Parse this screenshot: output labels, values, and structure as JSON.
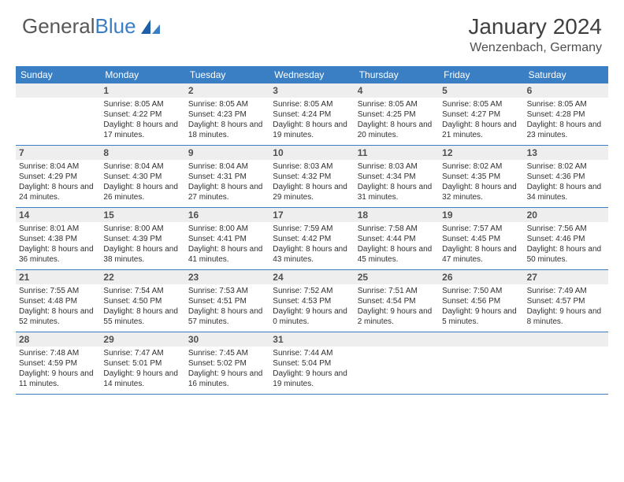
{
  "logo": {
    "word1": "General",
    "word2": "Blue"
  },
  "title": "January 2024",
  "location": "Wenzenbach, Germany",
  "colors": {
    "header_bg": "#3a7fc4",
    "header_text": "#ffffff",
    "numrow_bg": "#eeeeee",
    "row_border": "#3a7fc4",
    "body_text": "#303030",
    "logo_gray": "#585858",
    "logo_blue": "#3a7fc4"
  },
  "weekdays": [
    "Sunday",
    "Monday",
    "Tuesday",
    "Wednesday",
    "Thursday",
    "Friday",
    "Saturday"
  ],
  "weeks": [
    [
      {
        "n": "",
        "sr": "",
        "ss": "",
        "dl": ""
      },
      {
        "n": "1",
        "sr": "Sunrise: 8:05 AM",
        "ss": "Sunset: 4:22 PM",
        "dl": "Daylight: 8 hours and 17 minutes."
      },
      {
        "n": "2",
        "sr": "Sunrise: 8:05 AM",
        "ss": "Sunset: 4:23 PM",
        "dl": "Daylight: 8 hours and 18 minutes."
      },
      {
        "n": "3",
        "sr": "Sunrise: 8:05 AM",
        "ss": "Sunset: 4:24 PM",
        "dl": "Daylight: 8 hours and 19 minutes."
      },
      {
        "n": "4",
        "sr": "Sunrise: 8:05 AM",
        "ss": "Sunset: 4:25 PM",
        "dl": "Daylight: 8 hours and 20 minutes."
      },
      {
        "n": "5",
        "sr": "Sunrise: 8:05 AM",
        "ss": "Sunset: 4:27 PM",
        "dl": "Daylight: 8 hours and 21 minutes."
      },
      {
        "n": "6",
        "sr": "Sunrise: 8:05 AM",
        "ss": "Sunset: 4:28 PM",
        "dl": "Daylight: 8 hours and 23 minutes."
      }
    ],
    [
      {
        "n": "7",
        "sr": "Sunrise: 8:04 AM",
        "ss": "Sunset: 4:29 PM",
        "dl": "Daylight: 8 hours and 24 minutes."
      },
      {
        "n": "8",
        "sr": "Sunrise: 8:04 AM",
        "ss": "Sunset: 4:30 PM",
        "dl": "Daylight: 8 hours and 26 minutes."
      },
      {
        "n": "9",
        "sr": "Sunrise: 8:04 AM",
        "ss": "Sunset: 4:31 PM",
        "dl": "Daylight: 8 hours and 27 minutes."
      },
      {
        "n": "10",
        "sr": "Sunrise: 8:03 AM",
        "ss": "Sunset: 4:32 PM",
        "dl": "Daylight: 8 hours and 29 minutes."
      },
      {
        "n": "11",
        "sr": "Sunrise: 8:03 AM",
        "ss": "Sunset: 4:34 PM",
        "dl": "Daylight: 8 hours and 31 minutes."
      },
      {
        "n": "12",
        "sr": "Sunrise: 8:02 AM",
        "ss": "Sunset: 4:35 PM",
        "dl": "Daylight: 8 hours and 32 minutes."
      },
      {
        "n": "13",
        "sr": "Sunrise: 8:02 AM",
        "ss": "Sunset: 4:36 PM",
        "dl": "Daylight: 8 hours and 34 minutes."
      }
    ],
    [
      {
        "n": "14",
        "sr": "Sunrise: 8:01 AM",
        "ss": "Sunset: 4:38 PM",
        "dl": "Daylight: 8 hours and 36 minutes."
      },
      {
        "n": "15",
        "sr": "Sunrise: 8:00 AM",
        "ss": "Sunset: 4:39 PM",
        "dl": "Daylight: 8 hours and 38 minutes."
      },
      {
        "n": "16",
        "sr": "Sunrise: 8:00 AM",
        "ss": "Sunset: 4:41 PM",
        "dl": "Daylight: 8 hours and 41 minutes."
      },
      {
        "n": "17",
        "sr": "Sunrise: 7:59 AM",
        "ss": "Sunset: 4:42 PM",
        "dl": "Daylight: 8 hours and 43 minutes."
      },
      {
        "n": "18",
        "sr": "Sunrise: 7:58 AM",
        "ss": "Sunset: 4:44 PM",
        "dl": "Daylight: 8 hours and 45 minutes."
      },
      {
        "n": "19",
        "sr": "Sunrise: 7:57 AM",
        "ss": "Sunset: 4:45 PM",
        "dl": "Daylight: 8 hours and 47 minutes."
      },
      {
        "n": "20",
        "sr": "Sunrise: 7:56 AM",
        "ss": "Sunset: 4:46 PM",
        "dl": "Daylight: 8 hours and 50 minutes."
      }
    ],
    [
      {
        "n": "21",
        "sr": "Sunrise: 7:55 AM",
        "ss": "Sunset: 4:48 PM",
        "dl": "Daylight: 8 hours and 52 minutes."
      },
      {
        "n": "22",
        "sr": "Sunrise: 7:54 AM",
        "ss": "Sunset: 4:50 PM",
        "dl": "Daylight: 8 hours and 55 minutes."
      },
      {
        "n": "23",
        "sr": "Sunrise: 7:53 AM",
        "ss": "Sunset: 4:51 PM",
        "dl": "Daylight: 8 hours and 57 minutes."
      },
      {
        "n": "24",
        "sr": "Sunrise: 7:52 AM",
        "ss": "Sunset: 4:53 PM",
        "dl": "Daylight: 9 hours and 0 minutes."
      },
      {
        "n": "25",
        "sr": "Sunrise: 7:51 AM",
        "ss": "Sunset: 4:54 PM",
        "dl": "Daylight: 9 hours and 2 minutes."
      },
      {
        "n": "26",
        "sr": "Sunrise: 7:50 AM",
        "ss": "Sunset: 4:56 PM",
        "dl": "Daylight: 9 hours and 5 minutes."
      },
      {
        "n": "27",
        "sr": "Sunrise: 7:49 AM",
        "ss": "Sunset: 4:57 PM",
        "dl": "Daylight: 9 hours and 8 minutes."
      }
    ],
    [
      {
        "n": "28",
        "sr": "Sunrise: 7:48 AM",
        "ss": "Sunset: 4:59 PM",
        "dl": "Daylight: 9 hours and 11 minutes."
      },
      {
        "n": "29",
        "sr": "Sunrise: 7:47 AM",
        "ss": "Sunset: 5:01 PM",
        "dl": "Daylight: 9 hours and 14 minutes."
      },
      {
        "n": "30",
        "sr": "Sunrise: 7:45 AM",
        "ss": "Sunset: 5:02 PM",
        "dl": "Daylight: 9 hours and 16 minutes."
      },
      {
        "n": "31",
        "sr": "Sunrise: 7:44 AM",
        "ss": "Sunset: 5:04 PM",
        "dl": "Daylight: 9 hours and 19 minutes."
      },
      {
        "n": "",
        "sr": "",
        "ss": "",
        "dl": ""
      },
      {
        "n": "",
        "sr": "",
        "ss": "",
        "dl": ""
      },
      {
        "n": "",
        "sr": "",
        "ss": "",
        "dl": ""
      }
    ]
  ]
}
